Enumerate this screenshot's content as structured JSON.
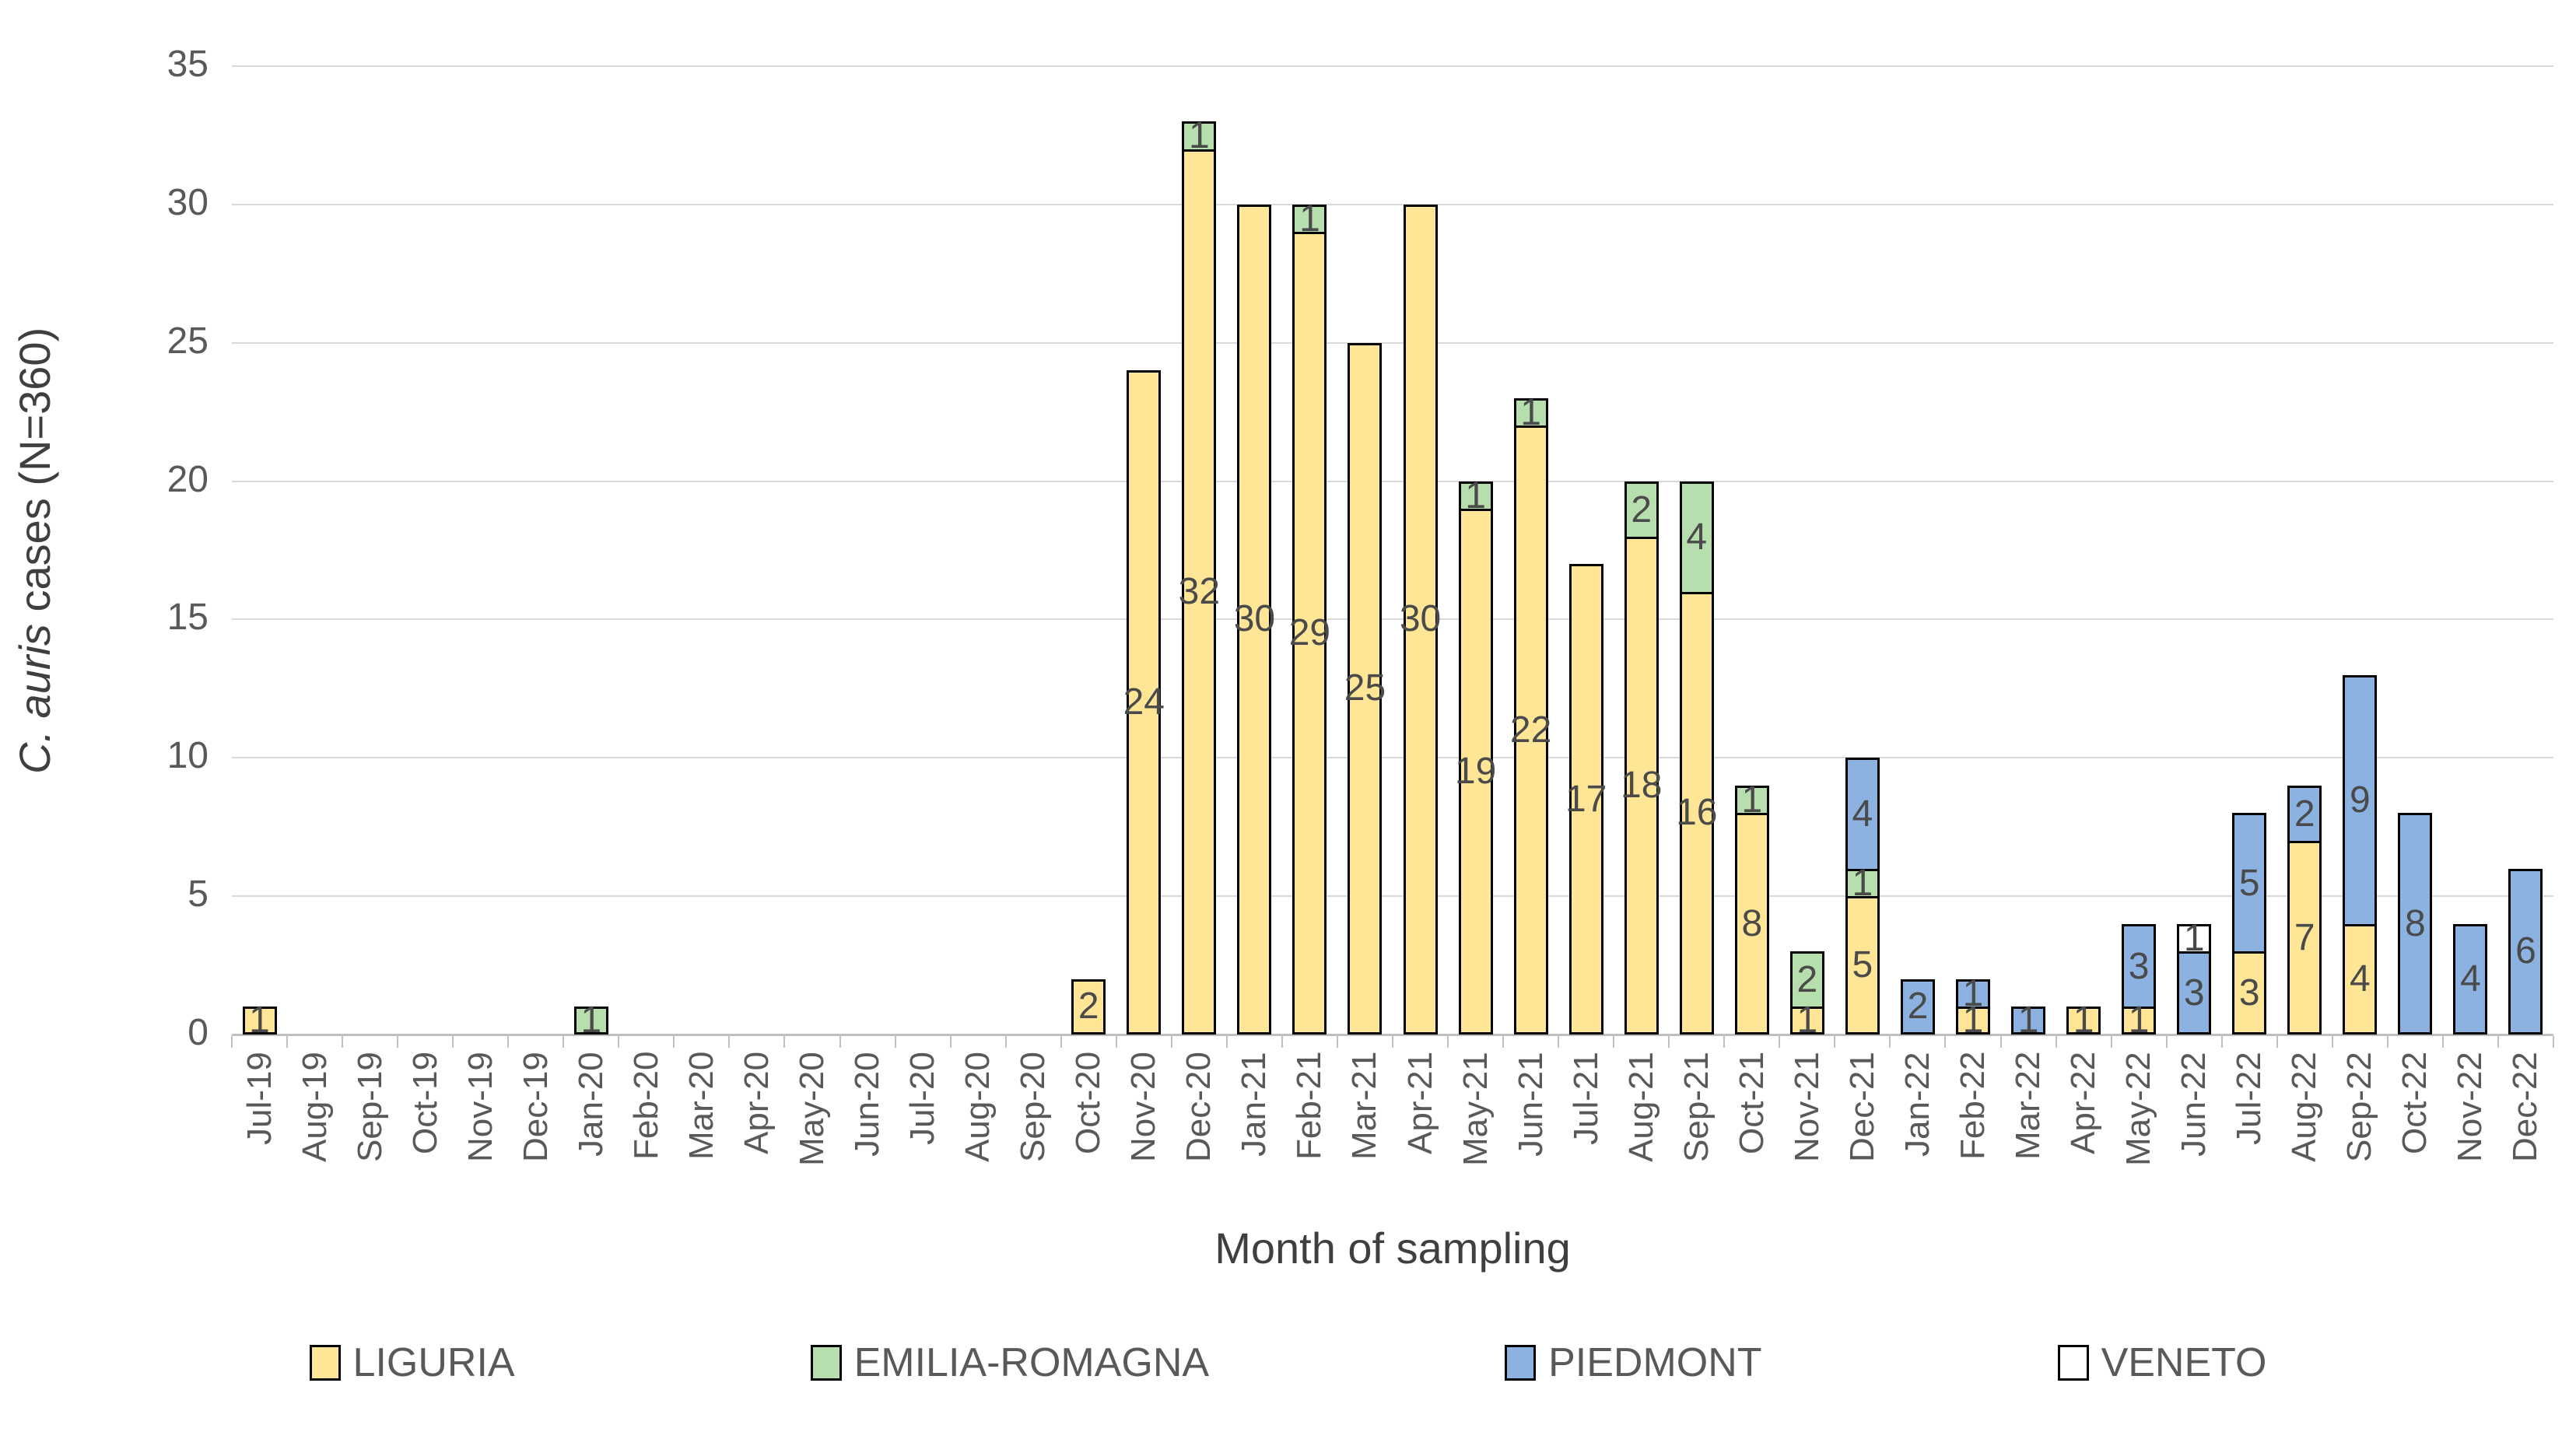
{
  "chart_data": {
    "type": "bar",
    "stacked": true,
    "title": "",
    "xlabel": "Month of sampling",
    "ylabel": "C. auris cases (N=360)",
    "ylabel_parts": {
      "italic": "C. auris",
      "regular": " cases (N=360)"
    },
    "ylim": [
      0,
      35
    ],
    "y_ticks": [
      0,
      5,
      10,
      15,
      20,
      25,
      30,
      35
    ],
    "grid": true,
    "legend_position": "bottom",
    "categories": [
      "Jul-19",
      "Aug-19",
      "Sep-19",
      "Oct-19",
      "Nov-19",
      "Dec-19",
      "Jan-20",
      "Feb-20",
      "Mar-20",
      "Apr-20",
      "May-20",
      "Jun-20",
      "Jul-20",
      "Aug-20",
      "Sep-20",
      "Oct-20",
      "Nov-20",
      "Dec-20",
      "Jan-21",
      "Feb-21",
      "Mar-21",
      "Apr-21",
      "May-21",
      "Jun-21",
      "Jul-21",
      "Aug-21",
      "Sep-21",
      "Oct-21",
      "Nov-21",
      "Dec-21",
      "Jan-22",
      "Feb-22",
      "Mar-22",
      "Apr-22",
      "May-22",
      "Jun-22",
      "Jul-22",
      "Aug-22",
      "Sep-22",
      "Oct-22",
      "Nov-22",
      "Dec-22"
    ],
    "series": [
      {
        "name": "LIGURIA",
        "color": "#FFE596",
        "values": [
          1,
          0,
          0,
          0,
          0,
          0,
          0,
          0,
          0,
          0,
          0,
          0,
          0,
          0,
          0,
          2,
          24,
          32,
          30,
          29,
          25,
          30,
          19,
          22,
          17,
          18,
          16,
          8,
          1,
          5,
          0,
          1,
          0,
          1,
          1,
          0,
          3,
          7,
          4,
          0,
          0,
          0
        ]
      },
      {
        "name": "EMILIA-ROMAGNA",
        "color": "#B7DFAD",
        "values": [
          0,
          0,
          0,
          0,
          0,
          0,
          1,
          0,
          0,
          0,
          0,
          0,
          0,
          0,
          0,
          0,
          0,
          1,
          0,
          1,
          0,
          0,
          1,
          1,
          0,
          2,
          4,
          1,
          2,
          1,
          0,
          0,
          0,
          0,
          0,
          0,
          0,
          0,
          0,
          0,
          0,
          0
        ]
      },
      {
        "name": "PIEDMONT",
        "color": "#8CB2E2",
        "values": [
          0,
          0,
          0,
          0,
          0,
          0,
          0,
          0,
          0,
          0,
          0,
          0,
          0,
          0,
          0,
          0,
          0,
          0,
          0,
          0,
          0,
          0,
          0,
          0,
          0,
          0,
          0,
          0,
          0,
          4,
          2,
          1,
          1,
          0,
          3,
          3,
          5,
          2,
          9,
          8,
          4,
          6
        ]
      },
      {
        "name": "VENETO",
        "color": "#FFFFFF",
        "values": [
          0,
          0,
          0,
          0,
          0,
          0,
          0,
          0,
          0,
          0,
          0,
          0,
          0,
          0,
          0,
          0,
          0,
          0,
          0,
          0,
          0,
          0,
          0,
          0,
          0,
          0,
          0,
          0,
          0,
          0,
          0,
          0,
          0,
          0,
          0,
          1,
          0,
          0,
          0,
          0,
          0,
          0
        ]
      }
    ],
    "segment_border_color": "#000000",
    "gridline_color": "#D9D9D9",
    "text_color": "#595959"
  }
}
